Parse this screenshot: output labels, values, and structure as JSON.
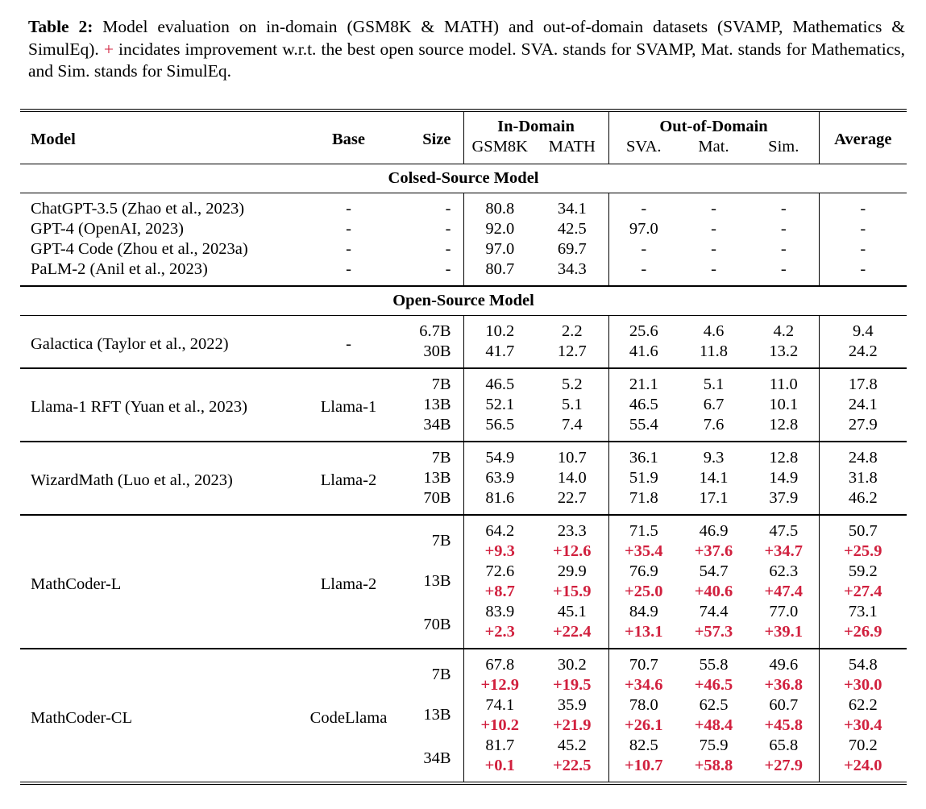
{
  "colors": {
    "accent_red": "#d1203e",
    "text": "#000000",
    "background": "#ffffff"
  },
  "caption": {
    "label": "Table 2:",
    "before_plus": " Model evaluation on in-domain (GSM8K & MATH) and out-of-domain datasets (SVAMP, Mathematics & SimulEq). ",
    "plus": "+",
    "after_plus": " incidates improvement w.r.t. the best open source model. SVA. stands for SVAMP, Mat. stands for Mathematics, and Sim. stands for SimulEq."
  },
  "table": {
    "header": {
      "model": "Model",
      "base": "Base",
      "size": "Size",
      "in_domain": "In-Domain",
      "out_of_domain": "Out-of-Domain",
      "average": "Average",
      "sub_columns": [
        "GSM8K",
        "MATH",
        "SVA.",
        "Mat.",
        "Sim."
      ]
    },
    "score_column_names": [
      "gsm8k",
      "math",
      "sva",
      "mat",
      "sim",
      "average"
    ],
    "sections": [
      {
        "title": "Colsed-Source Model",
        "group_rules": false,
        "groups": [
          {
            "model": "ChatGPT-3.5 (Zhao et al., 2023)",
            "base": "-",
            "entries": [
              {
                "size": "-",
                "scores": [
                  "80.8",
                  "34.1",
                  "-",
                  "-",
                  "-",
                  "-"
                ]
              }
            ]
          },
          {
            "model": "GPT-4 (OpenAI, 2023)",
            "base": "-",
            "entries": [
              {
                "size": "-",
                "scores": [
                  "92.0",
                  "42.5",
                  "97.0",
                  "-",
                  "-",
                  "-"
                ]
              }
            ]
          },
          {
            "model": "GPT-4 Code (Zhou et al., 2023a)",
            "base": "-",
            "entries": [
              {
                "size": "-",
                "scores": [
                  "97.0",
                  "69.7",
                  "-",
                  "-",
                  "-",
                  "-"
                ]
              }
            ]
          },
          {
            "model": "PaLM-2 (Anil et al., 2023)",
            "base": "-",
            "entries": [
              {
                "size": "-",
                "scores": [
                  "80.7",
                  "34.3",
                  "-",
                  "-",
                  "-",
                  "-"
                ]
              }
            ]
          }
        ]
      },
      {
        "title": "Open-Source Model",
        "group_rules": true,
        "groups": [
          {
            "model": "Galactica (Taylor et al., 2022)",
            "base": "-",
            "entries": [
              {
                "size": "6.7B",
                "scores": [
                  "10.2",
                  "2.2",
                  "25.6",
                  "4.6",
                  "4.2",
                  "9.4"
                ]
              },
              {
                "size": "30B",
                "scores": [
                  "41.7",
                  "12.7",
                  "41.6",
                  "11.8",
                  "13.2",
                  "24.2"
                ]
              }
            ]
          },
          {
            "model": "Llama-1 RFT (Yuan et al., 2023)",
            "base": "Llama-1",
            "entries": [
              {
                "size": "7B",
                "scores": [
                  "46.5",
                  "5.2",
                  "21.1",
                  "5.1",
                  "11.0",
                  "17.8"
                ]
              },
              {
                "size": "13B",
                "scores": [
                  "52.1",
                  "5.1",
                  "46.5",
                  "6.7",
                  "10.1",
                  "24.1"
                ]
              },
              {
                "size": "34B",
                "scores": [
                  "56.5",
                  "7.4",
                  "55.4",
                  "7.6",
                  "12.8",
                  "27.9"
                ]
              }
            ]
          },
          {
            "model": "WizardMath (Luo et al., 2023)",
            "base": "Llama-2",
            "entries": [
              {
                "size": "7B",
                "scores": [
                  "54.9",
                  "10.7",
                  "36.1",
                  "9.3",
                  "12.8",
                  "24.8"
                ]
              },
              {
                "size": "13B",
                "scores": [
                  "63.9",
                  "14.0",
                  "51.9",
                  "14.1",
                  "14.9",
                  "31.8"
                ]
              },
              {
                "size": "70B",
                "scores": [
                  "81.6",
                  "22.7",
                  "71.8",
                  "17.1",
                  "37.9",
                  "46.2"
                ]
              }
            ]
          },
          {
            "model": "MathCoder-L",
            "base": "Llama-2",
            "entries": [
              {
                "size": "7B",
                "scores": [
                  "64.2",
                  "23.3",
                  "71.5",
                  "46.9",
                  "47.5",
                  "50.7"
                ],
                "deltas": [
                  "+9.3",
                  "+12.6",
                  "+35.4",
                  "+37.6",
                  "+34.7",
                  "+25.9"
                ]
              },
              {
                "size": "13B",
                "scores": [
                  "72.6",
                  "29.9",
                  "76.9",
                  "54.7",
                  "62.3",
                  "59.2"
                ],
                "deltas": [
                  "+8.7",
                  "+15.9",
                  "+25.0",
                  "+40.6",
                  "+47.4",
                  "+27.4"
                ]
              },
              {
                "size": "70B",
                "scores": [
                  "83.9",
                  "45.1",
                  "84.9",
                  "74.4",
                  "77.0",
                  "73.1"
                ],
                "deltas": [
                  "+2.3",
                  "+22.4",
                  "+13.1",
                  "+57.3",
                  "+39.1",
                  "+26.9"
                ]
              }
            ]
          },
          {
            "model": "MathCoder-CL",
            "base": "CodeLlama",
            "entries": [
              {
                "size": "7B",
                "scores": [
                  "67.8",
                  "30.2",
                  "70.7",
                  "55.8",
                  "49.6",
                  "54.8"
                ],
                "deltas": [
                  "+12.9",
                  "+19.5",
                  "+34.6",
                  "+46.5",
                  "+36.8",
                  "+30.0"
                ]
              },
              {
                "size": "13B",
                "scores": [
                  "74.1",
                  "35.9",
                  "78.0",
                  "62.5",
                  "60.7",
                  "62.2"
                ],
                "deltas": [
                  "+10.2",
                  "+21.9",
                  "+26.1",
                  "+48.4",
                  "+45.8",
                  "+30.4"
                ]
              },
              {
                "size": "34B",
                "scores": [
                  "81.7",
                  "45.2",
                  "82.5",
                  "75.9",
                  "65.8",
                  "70.2"
                ],
                "deltas": [
                  "+0.1",
                  "+22.5",
                  "+10.7",
                  "+58.8",
                  "+27.9",
                  "+24.0"
                ]
              }
            ]
          }
        ]
      }
    ]
  }
}
